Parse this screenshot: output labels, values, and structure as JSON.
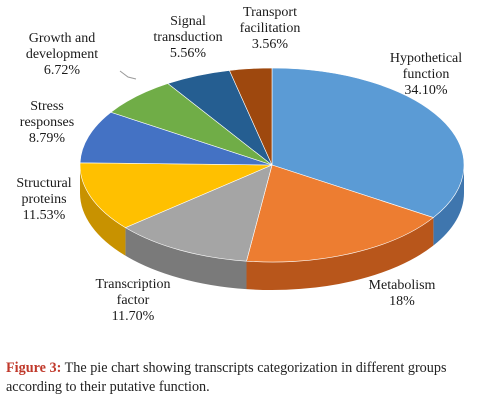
{
  "chart_data": {
    "type": "pie",
    "title": "",
    "slices": [
      {
        "label": [
          "Hypothetical",
          "function"
        ],
        "pct_text": "34.10%",
        "value": 34.1,
        "color": "#5B9BD5",
        "side": "#3F76AE"
      },
      {
        "label": [
          "Metabolism"
        ],
        "pct_text": "18%",
        "value": 18.0,
        "color": "#ED7D31",
        "side": "#B8561B"
      },
      {
        "label": [
          "Transcription",
          "factor"
        ],
        "pct_text": "11.70%",
        "value": 11.7,
        "color": "#A5A5A5",
        "side": "#7A7A7A"
      },
      {
        "label": [
          "Structural",
          "proteins"
        ],
        "pct_text": "11.53%",
        "value": 11.53,
        "color": "#FFC000",
        "side": "#C89200"
      },
      {
        "label": [
          "Stress",
          "responses"
        ],
        "pct_text": "8.79%",
        "value": 8.79,
        "color": "#4472C4",
        "side": "#2F4F8F"
      },
      {
        "label": [
          "Growth and",
          "development"
        ],
        "pct_text": "6.72%",
        "value": 6.72,
        "color": "#70AD47",
        "side": "#4E7A31"
      },
      {
        "label": [
          "Signal",
          "transduction"
        ],
        "pct_text": "5.56%",
        "value": 5.56,
        "color": "#255E91",
        "side": "#1A4468"
      },
      {
        "label": [
          "Transport",
          "facilitation"
        ],
        "pct_text": "3.56%",
        "value": 3.56,
        "color": "#9E480E",
        "side": "#6F320A"
      }
    ]
  },
  "caption": {
    "label": "Figure 3:",
    "text": " The pie chart showing transcripts categorization in different groups according to their putative function."
  }
}
